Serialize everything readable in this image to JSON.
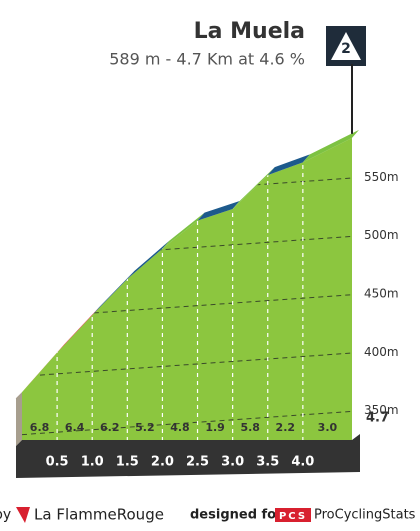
{
  "chart_data": {
    "type": "profile",
    "title": "La Muela",
    "subtitle": "589 m - 4.7 Km at 4.6 %",
    "category": "2",
    "x": [
      0,
      0.5,
      1.0,
      1.5,
      2.0,
      2.5,
      3.0,
      3.5,
      4.0,
      4.7
    ],
    "elevation": [
      371,
      405,
      437,
      468,
      494,
      518,
      528,
      557,
      568,
      589
    ],
    "gradients": [
      6.8,
      6.4,
      6.2,
      5.2,
      4.8,
      1.9,
      5.8,
      2.2,
      3.0
    ],
    "gradient_labels": [
      "6.8",
      "6.4",
      "6.2",
      "5.2",
      "4.8",
      "1.9",
      "5.8",
      "2.2",
      "3.0"
    ],
    "segment_colors": [
      "#e0223a",
      "#e0223a",
      "#1d5a8c",
      "#1d5a8c",
      "#7dc242",
      "#1d5a8c",
      "#7dc242",
      "#1d5a8c",
      "#7dc242"
    ],
    "fill_color": "#8cc63f",
    "xlim": [
      0,
      4.7
    ],
    "xticks": [
      0.5,
      {
        "value": 1,
        "label": "1.0"
      },
      1.5,
      {
        "value": 2,
        "label": "2.0"
      },
      2.5,
      {
        "value": 3,
        "label": "3.0"
      },
      3.5,
      {
        "value": 4,
        "label": "4.0"
      },
      4.7
    ],
    "ylim": [
      330,
      600
    ],
    "yticks": [
      {
        "value": 350,
        "label": "350m"
      },
      {
        "value": 400,
        "label": "400m"
      },
      {
        "value": 450,
        "label": "450m"
      },
      {
        "value": 500,
        "label": "500m"
      },
      {
        "value": 550,
        "label": "550m"
      }
    ],
    "grid": true
  },
  "footer": {
    "by": "by",
    "brand": "La FlammeRouge",
    "designed": "designed for",
    "pcs": "PCS",
    "site": "ProCyclingStats"
  }
}
